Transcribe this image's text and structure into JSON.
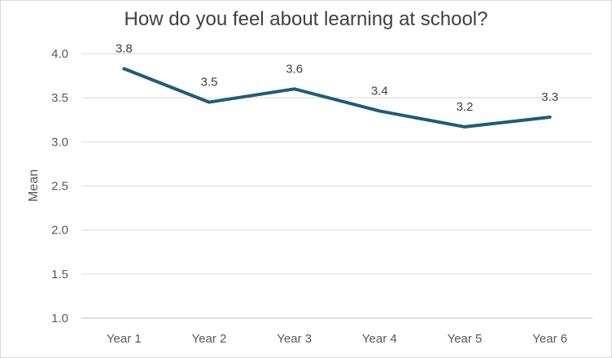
{
  "chart_data": {
    "type": "line",
    "title": "How do you feel about learning at school?",
    "xlabel": "",
    "ylabel": "Mean",
    "categories": [
      "Year 1",
      "Year 2",
      "Year 3",
      "Year 4",
      "Year 5",
      "Year 6"
    ],
    "series": [
      {
        "values": [
          3.83,
          3.45,
          3.6,
          3.35,
          3.17,
          3.28
        ],
        "labels": [
          "3.8",
          "3.5",
          "3.6",
          "3.4",
          "3.2",
          "3.3"
        ]
      }
    ],
    "ylim": [
      1.0,
      4.0
    ],
    "yticks": [
      "1.0",
      "1.5",
      "2.0",
      "2.5",
      "3.0",
      "3.5",
      "4.0"
    ],
    "grid": true,
    "legend": "none",
    "colors": {
      "line": "#1f5c7a",
      "grid": "#d9d9d9"
    }
  }
}
